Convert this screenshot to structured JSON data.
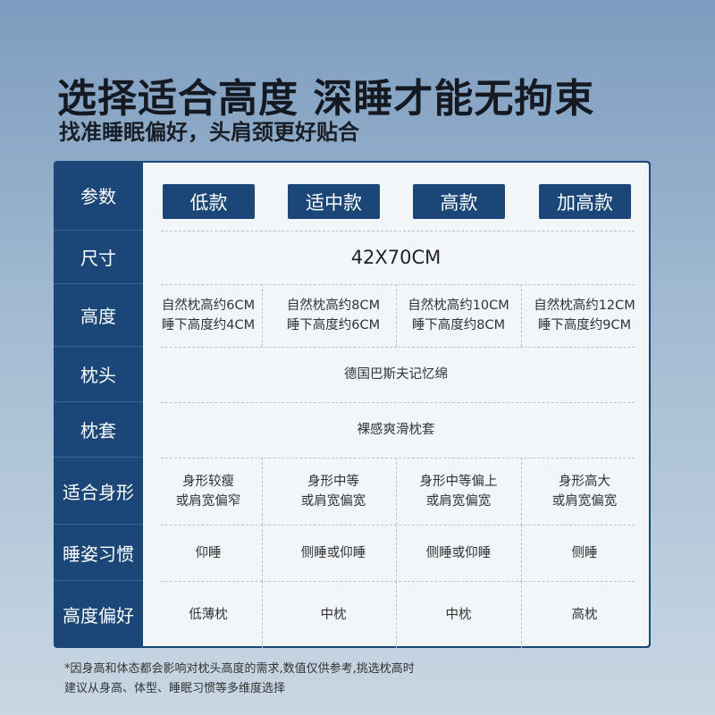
{
  "header": {
    "title": "选择适合高度 深睡才能无拘束",
    "subtitle": "找准睡眠偏好，头肩颈更好贴合"
  },
  "table": {
    "param_label": "参数",
    "models": [
      "低款",
      "适中款",
      "高款",
      "加高款"
    ],
    "rows": [
      {
        "label": "尺寸",
        "span": true,
        "values": [
          "42X70CM"
        ]
      },
      {
        "label": "高度",
        "span": false,
        "values": [
          "自然枕高约6CM\n睡下高度约4CM",
          "自然枕高约8CM\n睡下高度约6CM",
          "自然枕高约10CM\n睡下高度约8CM",
          "自然枕高约12CM\n睡下高度约9CM"
        ]
      },
      {
        "label": "枕头",
        "span": true,
        "values": [
          "德国巴斯夫记忆绵"
        ]
      },
      {
        "label": "枕套",
        "span": true,
        "values": [
          "裸感爽滑枕套"
        ]
      },
      {
        "label": "适合身形",
        "span": false,
        "values": [
          "身形较瘦\n或肩宽偏窄",
          "身形中等\n或肩宽偏宽",
          "身形中等偏上\n或肩宽偏宽",
          "身形高大\n或肩宽偏宽"
        ]
      },
      {
        "label": "睡姿习惯",
        "span": false,
        "values": [
          "仰睡",
          "侧睡或仰睡",
          "侧睡或仰睡",
          "侧睡"
        ]
      },
      {
        "label": "高度偏好",
        "span": false,
        "values": [
          "低薄枕",
          "中枕",
          "中枕",
          "高枕"
        ]
      }
    ]
  },
  "footnote": {
    "line1": "*因身高和体态都会影响对枕头高度的需求,数值仅供参考,挑选枕高时",
    "line2": "建议从身高、体型、睡眠习惯等多维度选择"
  },
  "colors": {
    "accent": "#1a4777",
    "panel": "#f3f6f9"
  }
}
